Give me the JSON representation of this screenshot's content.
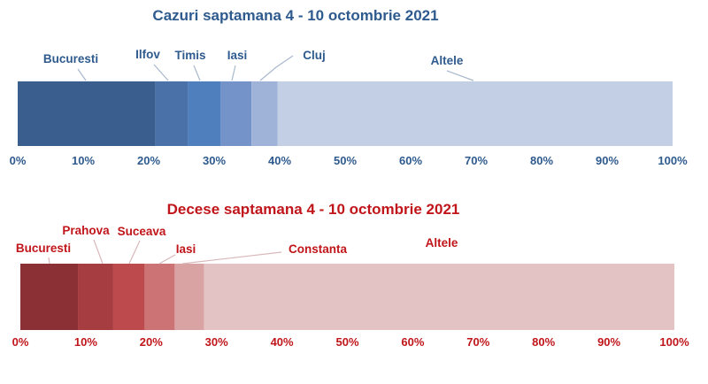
{
  "chart_data": [
    {
      "type": "bar",
      "orientation": "horizontal",
      "stacked": true,
      "percent": true,
      "title": "Cazuri saptamana 4 - 10 octombrie 2021",
      "title_color": "#2e5a8e",
      "text_color": "#2e5a8e",
      "leader_color": "#a9b8cc",
      "xlim": [
        0,
        100
      ],
      "ticks": [
        "0%",
        "10%",
        "20%",
        "30%",
        "40%",
        "50%",
        "60%",
        "70%",
        "80%",
        "90%",
        "100%"
      ],
      "series": [
        {
          "name": "Bucuresti",
          "value": 21,
          "color": "#3a5f8f"
        },
        {
          "name": "Ilfov",
          "value": 5,
          "color": "#4a72a8"
        },
        {
          "name": "Timis",
          "value": 5,
          "color": "#4f80bd"
        },
        {
          "name": "Iasi",
          "value": 4.7,
          "color": "#7494c9"
        },
        {
          "name": "Cluj",
          "value": 4,
          "color": "#9fb3d8"
        },
        {
          "name": "Altele",
          "value": 60.3,
          "color": "#c3cfe4"
        }
      ]
    },
    {
      "type": "bar",
      "orientation": "horizontal",
      "stacked": true,
      "percent": true,
      "title": "Decese saptamana 4 - 10 octombrie 2021",
      "title_color": "#c0151a",
      "text_color": "#c0151a",
      "leader_color": "#d9b8ba",
      "xlim": [
        0,
        100
      ],
      "ticks": [
        "0%",
        "10%",
        "20%",
        "30%",
        "40%",
        "50%",
        "60%",
        "70%",
        "80%",
        "90%",
        "100%"
      ],
      "series": [
        {
          "name": "Bucuresti",
          "value": 8.8,
          "color": "#8b3136"
        },
        {
          "name": "Prahova",
          "value": 5.4,
          "color": "#a63d41"
        },
        {
          "name": "Suceava",
          "value": 4.8,
          "color": "#bd4a4c"
        },
        {
          "name": "Iasi",
          "value": 4.6,
          "color": "#cc7475"
        },
        {
          "name": "Constanta",
          "value": 4.5,
          "color": "#d9a3a3"
        },
        {
          "name": "Altele",
          "value": 71.9,
          "color": "#e3c3c4"
        }
      ]
    }
  ]
}
